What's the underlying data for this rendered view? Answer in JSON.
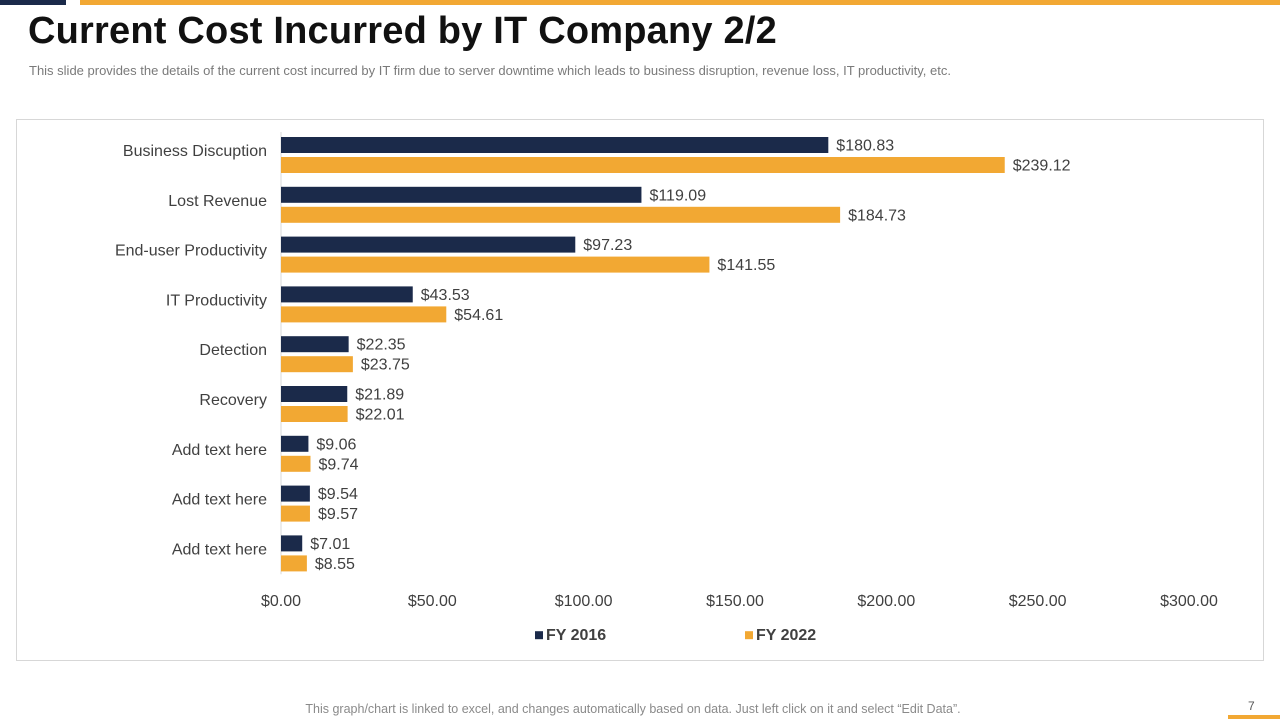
{
  "slide": {
    "title": "Current Cost Incurred by IT Company 2/2",
    "subtitle": "This slide provides the details of the current cost incurred by IT firm due to server downtime which leads to business disruption, revenue loss, IT productivity, etc.",
    "footer_note": "This graph/chart is linked to excel, and changes automatically based on data. Just left click on it and select “Edit Data”.",
    "page_number": "7"
  },
  "colors": {
    "fy2016": "#1b2a4a",
    "fy2022": "#f2a833",
    "accent_dark": "#1b2a4a",
    "accent_orange": "#f2a833"
  },
  "chart_data": {
    "type": "bar",
    "orientation": "horizontal",
    "title": "",
    "xlabel": "",
    "ylabel": "",
    "categories": [
      "Business Discuption",
      "Lost Revenue",
      "End-user Productivity",
      "IT Productivity",
      "Detection",
      "Recovery",
      "Add text here",
      "Add text here",
      "Add text here"
    ],
    "series": [
      {
        "name": "FY 2016",
        "values": [
          180.83,
          119.09,
          97.23,
          43.53,
          22.35,
          21.89,
          9.06,
          9.54,
          7.01
        ],
        "labels": [
          "$180.83",
          "$119.09",
          "$97.23",
          "$43.53",
          "$22.35",
          "$21.89",
          "$9.06",
          "$9.54",
          "$7.01"
        ]
      },
      {
        "name": "FY 2022",
        "values": [
          239.12,
          184.73,
          141.55,
          54.61,
          23.75,
          22.01,
          9.74,
          9.57,
          8.55
        ],
        "labels": [
          "$239.12",
          "$184.73",
          "$141.55",
          "$54.61",
          "$23.75",
          "$22.01",
          "$9.74",
          "$9.57",
          "$8.55"
        ]
      }
    ],
    "xlim": [
      0,
      300
    ],
    "x_ticks": [
      0,
      50,
      100,
      150,
      200,
      250,
      300
    ],
    "x_tick_labels": [
      "$0.00",
      "$50.00",
      "$100.00",
      "$150.00",
      "$200.00",
      "$250.00",
      "$300.00"
    ],
    "grid": false,
    "legend_position": "bottom"
  }
}
